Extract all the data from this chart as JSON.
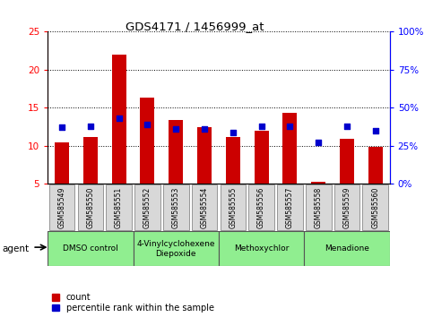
{
  "title": "GDS4171 / 1456999_at",
  "samples": [
    "GSM585549",
    "GSM585550",
    "GSM585551",
    "GSM585552",
    "GSM585553",
    "GSM585554",
    "GSM585555",
    "GSM585556",
    "GSM585557",
    "GSM585558",
    "GSM585559",
    "GSM585560"
  ],
  "count_values": [
    10.5,
    11.1,
    22.0,
    16.3,
    13.4,
    12.5,
    11.1,
    12.0,
    14.3,
    5.3,
    10.9,
    9.9
  ],
  "percentile_values": [
    37,
    38,
    43,
    39,
    36,
    36,
    34,
    38,
    38,
    27,
    38,
    35
  ],
  "ylim_left": [
    5,
    25
  ],
  "ylim_right": [
    0,
    100
  ],
  "yticks_left": [
    5,
    10,
    15,
    20,
    25
  ],
  "yticks_right": [
    0,
    25,
    50,
    75,
    100
  ],
  "ytick_labels_left": [
    "5",
    "10",
    "15",
    "20",
    "25"
  ],
  "ytick_labels_right": [
    "0%",
    "25%",
    "50%",
    "75%",
    "100%"
  ],
  "bar_color": "#cc0000",
  "dot_color": "#0000cc",
  "agent_groups": [
    {
      "label": "DMSO control",
      "start": 0,
      "end": 3,
      "color": "#90ee90"
    },
    {
      "label": "4-Vinylcyclohexene\nDiepoxide",
      "start": 3,
      "end": 6,
      "color": "#90ee90"
    },
    {
      "label": "Methoxychlor",
      "start": 6,
      "end": 9,
      "color": "#90ee90"
    },
    {
      "label": "Menadione",
      "start": 9,
      "end": 12,
      "color": "#90ee90"
    }
  ],
  "legend_count_label": "count",
  "legend_percentile_label": "percentile rank within the sample",
  "bar_width": 0.5,
  "baseline": 5
}
